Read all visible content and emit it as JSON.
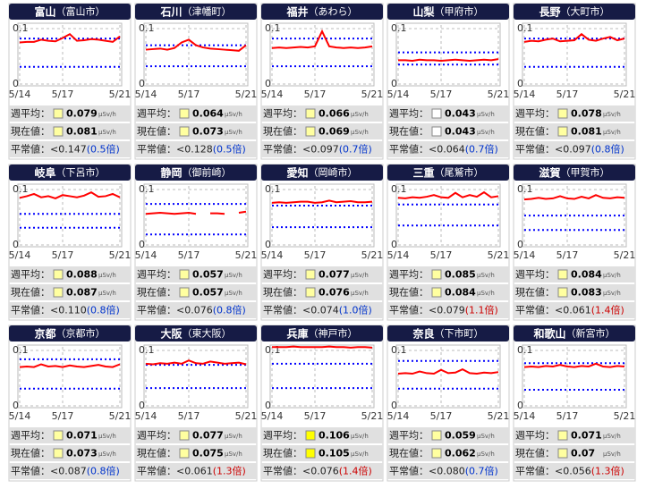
{
  "labels": {
    "weekly": "週平均：",
    "current": "現在値：",
    "normal": "平常値：",
    "unit": "μSv/h"
  },
  "chart_data": [
    {
      "type": "line",
      "title": "富山",
      "subtitle": "（富山市）",
      "categories": [
        "5/14",
        null,
        null,
        null,
        null,
        null,
        "5/17",
        null,
        null,
        null,
        null,
        null,
        null,
        null,
        "5/21"
      ],
      "values": [
        0.075,
        0.076,
        0.076,
        0.08,
        0.078,
        0.077,
        0.083,
        0.09,
        0.078,
        0.079,
        0.081,
        0.08,
        0.078,
        0.076,
        0.086
      ],
      "color": "#ff0000",
      "ref_lines": [
        0.082,
        0.031
      ],
      "ref_color": "#0000ff",
      "ylim": [
        0,
        0.1
      ],
      "yticks": [
        0,
        0.1
      ],
      "weekly": 0.079,
      "current": 0.081,
      "normal": "<0.147",
      "ratio": "(0.5倍)",
      "ratio_color": "#0033cc",
      "box_color": "#ffffa0"
    },
    {
      "type": "line",
      "title": "石川",
      "subtitle": "（津幡町）",
      "categories": [
        "5/14",
        null,
        null,
        null,
        null,
        null,
        "5/17",
        null,
        null,
        null,
        null,
        null,
        null,
        null,
        "5/21"
      ],
      "values": [
        0.062,
        0.063,
        0.064,
        0.062,
        0.065,
        0.075,
        0.08,
        0.07,
        0.066,
        0.064,
        0.063,
        0.062,
        0.061,
        0.06,
        0.07
      ],
      "color": "#ff0000",
      "ref_lines": [
        0.07,
        0.032
      ],
      "ref_color": "#0000ff",
      "ylim": [
        0,
        0.1
      ],
      "yticks": [
        0,
        0.1
      ],
      "weekly": 0.064,
      "current": 0.073,
      "normal": "<0.128",
      "ratio": "(0.5倍)",
      "ratio_color": "#0033cc",
      "box_color": "#ffffa0"
    },
    {
      "type": "line",
      "title": "福井",
      "subtitle": "（あわら）",
      "categories": [
        "5/14",
        null,
        null,
        null,
        null,
        null,
        "5/17",
        null,
        null,
        null,
        null,
        null,
        null,
        null,
        "5/21"
      ],
      "values": [
        0.065,
        0.066,
        0.065,
        0.066,
        0.067,
        0.066,
        0.068,
        0.095,
        0.068,
        0.066,
        0.065,
        0.066,
        0.065,
        0.066,
        0.068
      ],
      "color": "#ff0000",
      "ref_lines": [
        0.082,
        0.032
      ],
      "ref_color": "#0000ff",
      "ylim": [
        0,
        0.1
      ],
      "yticks": [
        0,
        0.1
      ],
      "weekly": 0.066,
      "current": 0.069,
      "normal": "<0.097",
      "ratio": "(0.7倍)",
      "ratio_color": "#0033cc",
      "box_color": "#ffffa0"
    },
    {
      "type": "line",
      "title": "山梨",
      "subtitle": "（甲府市）",
      "categories": [
        "5/14",
        null,
        null,
        null,
        null,
        null,
        "5/17",
        null,
        null,
        null,
        null,
        null,
        null,
        null,
        "5/21"
      ],
      "values": [
        0.043,
        0.043,
        0.042,
        0.044,
        0.043,
        0.043,
        0.042,
        0.043,
        0.044,
        0.043,
        0.042,
        0.043,
        0.044,
        0.043,
        0.045
      ],
      "color": "#ff0000",
      "ref_lines": [
        0.057,
        0.035
      ],
      "ref_color": "#0000ff",
      "ylim": [
        0,
        0.1
      ],
      "yticks": [
        0,
        0.1
      ],
      "weekly": 0.043,
      "current": 0.043,
      "normal": "<0.064",
      "ratio": "(0.7倍)",
      "ratio_color": "#0033cc",
      "box_color": "#ffffff"
    },
    {
      "type": "line",
      "title": "長野",
      "subtitle": "（大町市）",
      "categories": [
        "5/14",
        null,
        null,
        null,
        null,
        null,
        "5/17",
        null,
        null,
        null,
        null,
        null,
        null,
        null,
        "5/21"
      ],
      "values": [
        0.076,
        0.078,
        0.077,
        0.08,
        0.082,
        0.077,
        0.078,
        0.079,
        0.09,
        0.08,
        0.078,
        0.082,
        0.085,
        0.079,
        0.082
      ],
      "color": "#ff0000",
      "ref_lines": [
        0.082,
        0.031
      ],
      "ref_color": "#0000ff",
      "ylim": [
        0,
        0.1
      ],
      "yticks": [
        0,
        0.1
      ],
      "weekly": 0.078,
      "current": 0.081,
      "normal": "<0.097",
      "ratio": "(0.8倍)",
      "ratio_color": "#0033cc",
      "box_color": "#ffffa0"
    },
    {
      "type": "line",
      "title": "岐阜",
      "subtitle": "（下呂市）",
      "categories": [
        "5/14",
        null,
        null,
        null,
        null,
        null,
        "5/17",
        null,
        null,
        null,
        null,
        null,
        null,
        null,
        "5/21"
      ],
      "values": [
        0.085,
        0.088,
        0.092,
        0.086,
        0.088,
        0.084,
        0.09,
        0.088,
        0.086,
        0.089,
        0.095,
        0.087,
        0.088,
        0.092,
        0.086
      ],
      "color": "#ff0000",
      "ref_lines": [
        0.056,
        0.031
      ],
      "ref_color": "#0000ff",
      "ylim": [
        0,
        0.1
      ],
      "yticks": [
        0,
        0.1
      ],
      "weekly": 0.088,
      "current": 0.087,
      "normal": "<0.110",
      "ratio": "(0.8倍)",
      "ratio_color": "#0033cc",
      "box_color": "#ffffa0"
    },
    {
      "type": "line",
      "title": "静岡",
      "subtitle": "（御前崎）",
      "categories": [
        "5/14",
        null,
        null,
        null,
        null,
        null,
        "5/17",
        null,
        null,
        null,
        null,
        null,
        null,
        null,
        "5/21"
      ],
      "values": [
        0.056,
        0.057,
        0.058,
        0.057,
        0.056,
        0.057,
        0.058,
        0.056,
        null,
        0.057,
        0.057,
        0.056,
        null,
        0.058,
        0.06
      ],
      "color": "#ff0000",
      "ref_lines": [
        0.074,
        0.019
      ],
      "ref_color": "#0000ff",
      "ylim": [
        0,
        0.1
      ],
      "yticks": [
        0,
        0.1
      ],
      "weekly": 0.057,
      "current": 0.057,
      "normal": "<0.076",
      "ratio": "(0.8倍)",
      "ratio_color": "#0033cc",
      "box_color": "#ffffa0"
    },
    {
      "type": "line",
      "title": "愛知",
      "subtitle": "（岡崎市）",
      "categories": [
        "5/14",
        null,
        null,
        null,
        null,
        null,
        "5/17",
        null,
        null,
        null,
        null,
        null,
        null,
        null,
        "5/21"
      ],
      "values": [
        0.076,
        0.077,
        0.076,
        0.077,
        0.078,
        0.078,
        0.076,
        0.077,
        0.08,
        0.077,
        0.078,
        0.079,
        0.077,
        0.077,
        0.078
      ],
      "color": "#ff0000",
      "ref_lines": [
        0.071,
        0.032
      ],
      "ref_color": "#0000ff",
      "ylim": [
        0,
        0.1
      ],
      "yticks": [
        0,
        0.1
      ],
      "weekly": 0.077,
      "current": 0.076,
      "normal": "<0.074",
      "ratio": "(1.0倍)",
      "ratio_color": "#0033cc",
      "box_color": "#ffffa0"
    },
    {
      "type": "line",
      "title": "三重",
      "subtitle": "（尾鷲市）",
      "categories": [
        "5/14",
        null,
        null,
        null,
        null,
        null,
        "5/17",
        null,
        null,
        null,
        null,
        null,
        null,
        null,
        "5/21"
      ],
      "values": [
        0.085,
        0.084,
        0.086,
        0.085,
        0.087,
        0.09,
        0.086,
        0.085,
        0.094,
        0.086,
        0.09,
        0.087,
        0.095,
        0.086,
        0.088
      ],
      "color": "#ff0000",
      "ref_lines": [
        0.073,
        0.035
      ],
      "ref_color": "#0000ff",
      "ylim": [
        0,
        0.1
      ],
      "yticks": [
        0,
        0.1
      ],
      "weekly": 0.085,
      "current": 0.084,
      "normal": "<0.079",
      "ratio": "(1.1倍)",
      "ratio_color": "#cc0000",
      "box_color": "#ffffa0"
    },
    {
      "type": "line",
      "title": "滋賀",
      "subtitle": "（甲賀市）",
      "categories": [
        "5/14",
        null,
        null,
        null,
        null,
        null,
        "5/17",
        null,
        null,
        null,
        null,
        null,
        null,
        null,
        "5/21"
      ],
      "values": [
        0.082,
        0.083,
        0.085,
        0.083,
        0.084,
        0.088,
        0.084,
        0.083,
        0.087,
        0.084,
        0.09,
        0.085,
        0.084,
        0.086,
        0.085
      ],
      "color": "#ff0000",
      "ref_lines": [
        0.053,
        0.027
      ],
      "ref_color": "#0000ff",
      "ylim": [
        0,
        0.1
      ],
      "yticks": [
        0,
        0.1
      ],
      "weekly": 0.084,
      "current": 0.083,
      "normal": "<0.061",
      "ratio": "(1.4倍)",
      "ratio_color": "#cc0000",
      "box_color": "#ffffa0"
    },
    {
      "type": "line",
      "title": "京都",
      "subtitle": "（京都市）",
      "categories": [
        "5/14",
        null,
        null,
        null,
        null,
        null,
        "5/17",
        null,
        null,
        null,
        null,
        null,
        null,
        null,
        "5/21"
      ],
      "values": [
        0.07,
        0.071,
        0.07,
        0.075,
        0.071,
        0.072,
        0.07,
        0.073,
        0.071,
        0.07,
        0.072,
        0.074,
        0.071,
        0.07,
        0.075
      ],
      "color": "#ff0000",
      "ref_lines": [
        0.084,
        0.031
      ],
      "ref_color": "#0000ff",
      "ylim": [
        0,
        0.1
      ],
      "yticks": [
        0,
        0.1
      ],
      "weekly": 0.071,
      "current": 0.073,
      "normal": "<0.087",
      "ratio": "(0.8倍)",
      "ratio_color": "#0033cc",
      "box_color": "#ffffa0"
    },
    {
      "type": "line",
      "title": "大阪",
      "subtitle": "（東大阪）",
      "categories": [
        "5/14",
        null,
        null,
        null,
        null,
        null,
        "5/17",
        null,
        null,
        null,
        null,
        null,
        null,
        null,
        "5/21"
      ],
      "values": [
        0.076,
        0.075,
        0.077,
        0.076,
        0.078,
        0.076,
        0.082,
        0.077,
        0.076,
        0.08,
        0.078,
        0.076,
        0.077,
        0.078,
        0.075
      ],
      "color": "#ff0000",
      "ref_lines": [
        0.074,
        0.032
      ],
      "ref_color": "#0000ff",
      "ylim": [
        0,
        0.1
      ],
      "yticks": [
        0,
        0.1
      ],
      "weekly": 0.077,
      "current": 0.075,
      "normal": "<0.061",
      "ratio": "(1.3倍)",
      "ratio_color": "#cc0000",
      "box_color": "#ffffa0"
    },
    {
      "type": "line",
      "title": "兵庫",
      "subtitle": "（神戸市）",
      "categories": [
        "5/14",
        null,
        null,
        null,
        null,
        null,
        "5/17",
        null,
        null,
        null,
        null,
        null,
        null,
        null,
        "5/21"
      ],
      "values": [
        0.106,
        0.106,
        0.106,
        0.107,
        0.106,
        0.106,
        0.106,
        0.106,
        0.107,
        0.106,
        0.106,
        0.105,
        0.106,
        0.106,
        0.105
      ],
      "color": "#ff0000",
      "ref_lines": [
        0.076,
        0.032
      ],
      "ref_color": "#0000ff",
      "ylim": [
        0,
        0.1
      ],
      "yticks": [
        0,
        0.1
      ],
      "weekly": 0.106,
      "current": 0.105,
      "normal": "<0.076",
      "ratio": "(1.4倍)",
      "ratio_color": "#cc0000",
      "box_color": "#ffff00"
    },
    {
      "type": "line",
      "title": "奈良",
      "subtitle": "（下市町）",
      "categories": [
        "5/14",
        null,
        null,
        null,
        null,
        null,
        "5/17",
        null,
        null,
        null,
        null,
        null,
        null,
        null,
        "5/21"
      ],
      "values": [
        0.058,
        0.059,
        0.058,
        0.062,
        0.059,
        0.058,
        0.065,
        0.059,
        0.06,
        0.066,
        0.059,
        0.058,
        0.06,
        0.059,
        0.061
      ],
      "color": "#ff0000",
      "ref_lines": [
        0.081,
        0.031
      ],
      "ref_color": "#0000ff",
      "ylim": [
        0,
        0.1
      ],
      "yticks": [
        0,
        0.1
      ],
      "weekly": 0.059,
      "current": 0.062,
      "normal": "<0.080",
      "ratio": "(0.7倍)",
      "ratio_color": "#0033cc",
      "box_color": "#ffffa0"
    },
    {
      "type": "line",
      "title": "和歌山",
      "subtitle": "（新宮市）",
      "categories": [
        "5/14",
        null,
        null,
        null,
        null,
        null,
        "5/17",
        null,
        null,
        null,
        null,
        null,
        null,
        null,
        "5/21"
      ],
      "values": [
        0.07,
        0.071,
        0.07,
        0.072,
        0.071,
        0.074,
        0.071,
        0.07,
        0.072,
        0.071,
        0.076,
        0.071,
        0.07,
        0.072,
        0.071
      ],
      "color": "#ff0000",
      "ref_lines": [
        0.077,
        0.029
      ],
      "ref_color": "#0000ff",
      "ylim": [
        0,
        0.1
      ],
      "yticks": [
        0,
        0.1
      ],
      "weekly": 0.071,
      "current": 0.07,
      "normal": "<0.056",
      "ratio": "(1.3倍)",
      "ratio_color": "#cc0000",
      "box_color": "#ffffa0"
    }
  ]
}
